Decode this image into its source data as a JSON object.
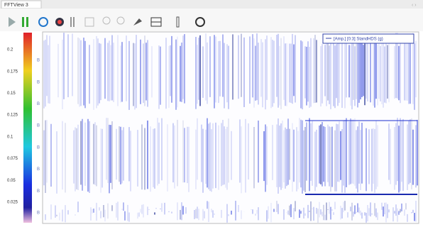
{
  "window": {
    "tab_title": "FFTView 3"
  },
  "plot": {
    "legend_text": "[Amp.] [0:3] StandHDS (g)",
    "y_labels": [
      "0.2",
      "0.175",
      "0.15",
      "0.125",
      "0.1",
      "0.075",
      "0.05",
      "0.025"
    ]
  }
}
